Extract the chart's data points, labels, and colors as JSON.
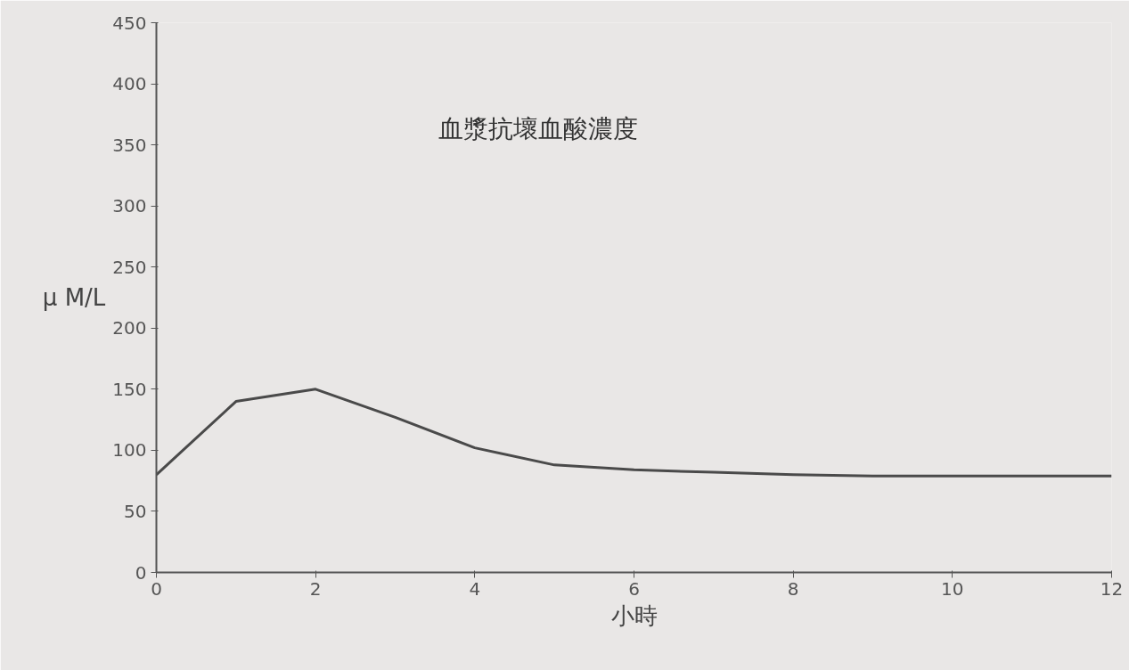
{
  "chart_data": {
    "type": "line",
    "title": "血漿抗壞血酸濃度",
    "xlabel": "小時",
    "ylabel": "μ M/L",
    "x": [
      0,
      1,
      2,
      3,
      4,
      5,
      6,
      7,
      8,
      9,
      10,
      11,
      12
    ],
    "series": [
      {
        "color": "#4a4a4a",
        "values": [
          80,
          140,
          150,
          127,
          102,
          88,
          84,
          82,
          80,
          79,
          79,
          79,
          79
        ]
      }
    ],
    "xlim": [
      0,
      12
    ],
    "xticks": [
      0,
      2,
      4,
      6,
      8,
      10,
      12
    ],
    "ylim": [
      0,
      450
    ],
    "yticks": [
      0,
      50,
      100,
      150,
      200,
      250,
      300,
      350,
      400,
      450
    ],
    "marker": "none",
    "line_style": "solid"
  }
}
